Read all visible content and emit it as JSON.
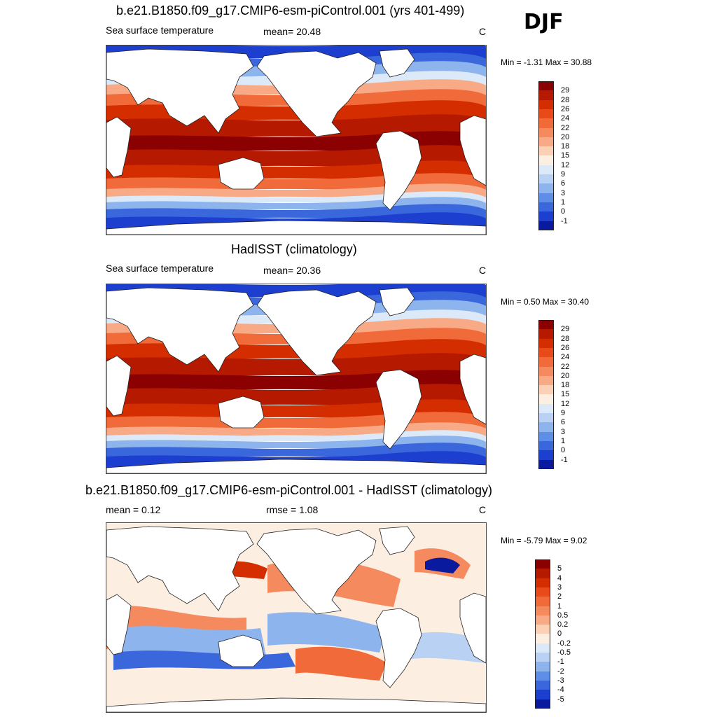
{
  "season": "DJF",
  "panels": [
    {
      "title": "b.e21.B1850.f09_g17.CMIP6-esm-piControl.001 (yrs 401-499)",
      "left_label": "Sea surface temperature",
      "mid_label": "mean=  20.48",
      "unit": "C",
      "minmax": "Min =  -1.31 Max =  30.88",
      "kind": "abs",
      "colorbar": {
        "ticks": [
          "29",
          "28",
          "26",
          "24",
          "22",
          "20",
          "18",
          "15",
          "12",
          "9",
          "6",
          "3",
          "1",
          "0",
          "-1"
        ],
        "colors": [
          "#8b0000",
          "#b51a00",
          "#d42d00",
          "#e84a1a",
          "#f06a3a",
          "#f58a5f",
          "#f8aa86",
          "#fbd0b5",
          "#fdeee2",
          "#dce9f8",
          "#b9d2f3",
          "#8db4ec",
          "#5e8ee5",
          "#3a68dc",
          "#1d3fd0",
          "#0a1a9e"
        ]
      }
    },
    {
      "title": "HadISST (climatology)",
      "left_label": "Sea surface temperature",
      "mid_label": "mean=  20.36",
      "unit": "C",
      "minmax": "Min =   0.50 Max =  30.40",
      "kind": "abs",
      "colorbar": {
        "ticks": [
          "29",
          "28",
          "26",
          "24",
          "22",
          "20",
          "18",
          "15",
          "12",
          "9",
          "6",
          "3",
          "1",
          "0",
          "-1"
        ],
        "colors": [
          "#8b0000",
          "#b51a00",
          "#d42d00",
          "#e84a1a",
          "#f06a3a",
          "#f58a5f",
          "#f8aa86",
          "#fbd0b5",
          "#fdeee2",
          "#dce9f8",
          "#b9d2f3",
          "#8db4ec",
          "#5e8ee5",
          "#3a68dc",
          "#1d3fd0",
          "#0a1a9e"
        ]
      }
    },
    {
      "title": "b.e21.B1850.f09_g17.CMIP6-esm-piControl.001 - HadISST (climatology)",
      "left_label": "mean =   0.12",
      "mid_label": "rmse =   1.08",
      "unit": "C",
      "minmax": "Min =  -5.79 Max =   9.02",
      "kind": "diff",
      "colorbar": {
        "ticks": [
          "5",
          "4",
          "3",
          "2",
          "1",
          "0.5",
          "0.2",
          "0",
          "-0.2",
          "-0.5",
          "-1",
          "-2",
          "-3",
          "-4",
          "-5"
        ],
        "colors": [
          "#8b0000",
          "#b51a00",
          "#d42d00",
          "#e84a1a",
          "#f06a3a",
          "#f58a5f",
          "#f8aa86",
          "#fbd0b5",
          "#fdeee2",
          "#dce9f8",
          "#b9d2f3",
          "#8db4ec",
          "#5e8ee5",
          "#3a68dc",
          "#1d3fd0",
          "#0a1a9e"
        ]
      }
    }
  ]
}
